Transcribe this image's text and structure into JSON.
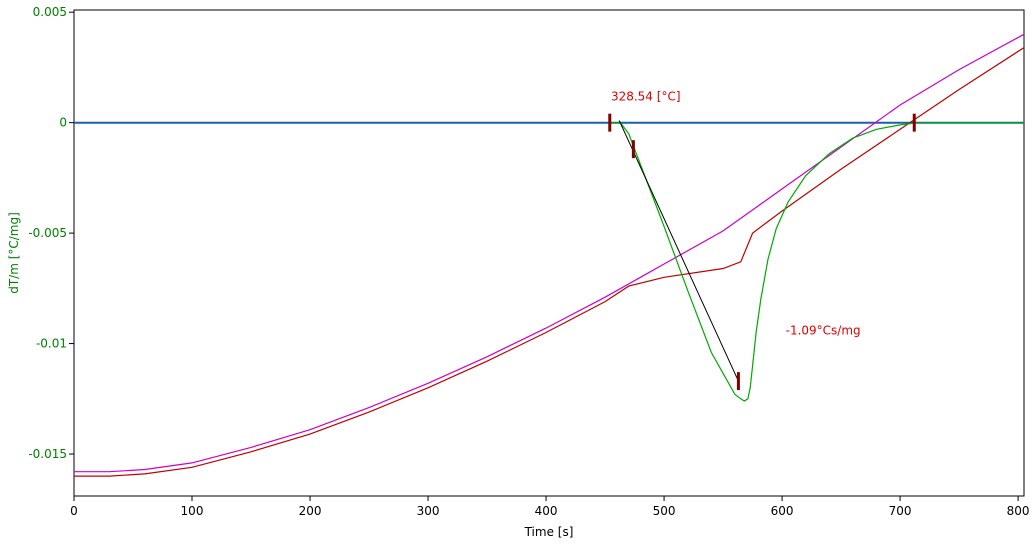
{
  "chart_data": {
    "type": "line",
    "xlabel": "Time [s]",
    "ylabel": "dT/m  [°C/mg]",
    "xlim": [
      0,
      805
    ],
    "ylim": [
      -0.0169,
      0.0051
    ],
    "x_ticks": [
      0,
      100,
      200,
      300,
      400,
      500,
      600,
      700,
      800
    ],
    "x_tick_labels": [
      "0",
      "100",
      "200",
      "300",
      "400",
      "500",
      "600",
      "700",
      "800"
    ],
    "y_ticks": [
      0.005,
      0,
      -0.005,
      -0.01,
      -0.015
    ],
    "y_tick_labels": [
      "0.005",
      "0",
      "-0.005",
      "-0.01",
      "-0.015"
    ],
    "grid": false,
    "colors": {
      "axis": "#000000",
      "y_text": "#008000",
      "annotation": "#e00000",
      "baseline": "#1f5fa8",
      "magenta": "#cc00cc",
      "red": "#c00000",
      "green": "#00aa00",
      "marker": "#800000"
    },
    "series": [
      {
        "color": "#1f5fa8",
        "x": [
          0,
          805
        ],
        "y": [
          0,
          0
        ]
      },
      {
        "color": "#cc00cc",
        "x": [
          0,
          30,
          60,
          100,
          150,
          200,
          250,
          300,
          350,
          400,
          450,
          500,
          550,
          600,
          650,
          700,
          750,
          805
        ],
        "y": [
          -0.0158,
          -0.0158,
          -0.0157,
          -0.0154,
          -0.0147,
          -0.0139,
          -0.0129,
          -0.0118,
          -0.0106,
          -0.0093,
          -0.0079,
          -0.0064,
          -0.0049,
          -0.003,
          -0.0011,
          0.0008,
          0.0024,
          0.004
        ]
      },
      {
        "color": "#c00000",
        "x": [
          0,
          30,
          60,
          100,
          150,
          200,
          250,
          300,
          350,
          400,
          450,
          470,
          500,
          550,
          565,
          575,
          600,
          650,
          700,
          750,
          805
        ],
        "y": [
          -0.016,
          -0.016,
          -0.0159,
          -0.0156,
          -0.0149,
          -0.0141,
          -0.0131,
          -0.012,
          -0.0108,
          -0.0095,
          -0.0081,
          -0.0074,
          -0.007,
          -0.0066,
          -0.0063,
          -0.005,
          -0.004,
          -0.0021,
          -0.0003,
          0.0015,
          0.0034
        ]
      },
      {
        "color": "#00aa00",
        "x": [
          455,
          463,
          470,
          480,
          500,
          520,
          540,
          560,
          565,
          568,
          571,
          573,
          575,
          578,
          582,
          588,
          595,
          605,
          620,
          640,
          660,
          680,
          700,
          715,
          805
        ],
        "y": [
          0,
          0,
          -0.0005,
          -0.0019,
          -0.0047,
          -0.0076,
          -0.0104,
          -0.0123,
          -0.0125,
          -0.0126,
          -0.0125,
          -0.012,
          -0.011,
          -0.0095,
          -0.008,
          -0.0062,
          -0.0048,
          -0.0036,
          -0.0024,
          -0.0014,
          -0.0007,
          -0.0003,
          -0.0001,
          0,
          0
        ]
      }
    ],
    "tangent_line": {
      "color": "#000000",
      "x": [
        462,
        563
      ],
      "y": [
        0.0001,
        -0.0117
      ]
    },
    "markers": [
      {
        "x": 454,
        "y": 0
      },
      {
        "x": 474,
        "y": -0.0012
      },
      {
        "x": 563,
        "y": -0.0117
      },
      {
        "x": 712,
        "y": 0
      }
    ],
    "annotations": [
      {
        "text": "328.54 [°C]",
        "x": 455,
        "y": 0.001
      },
      {
        "text": "-1.09°Cs/mg",
        "x": 603,
        "y": -0.0096
      }
    ]
  }
}
